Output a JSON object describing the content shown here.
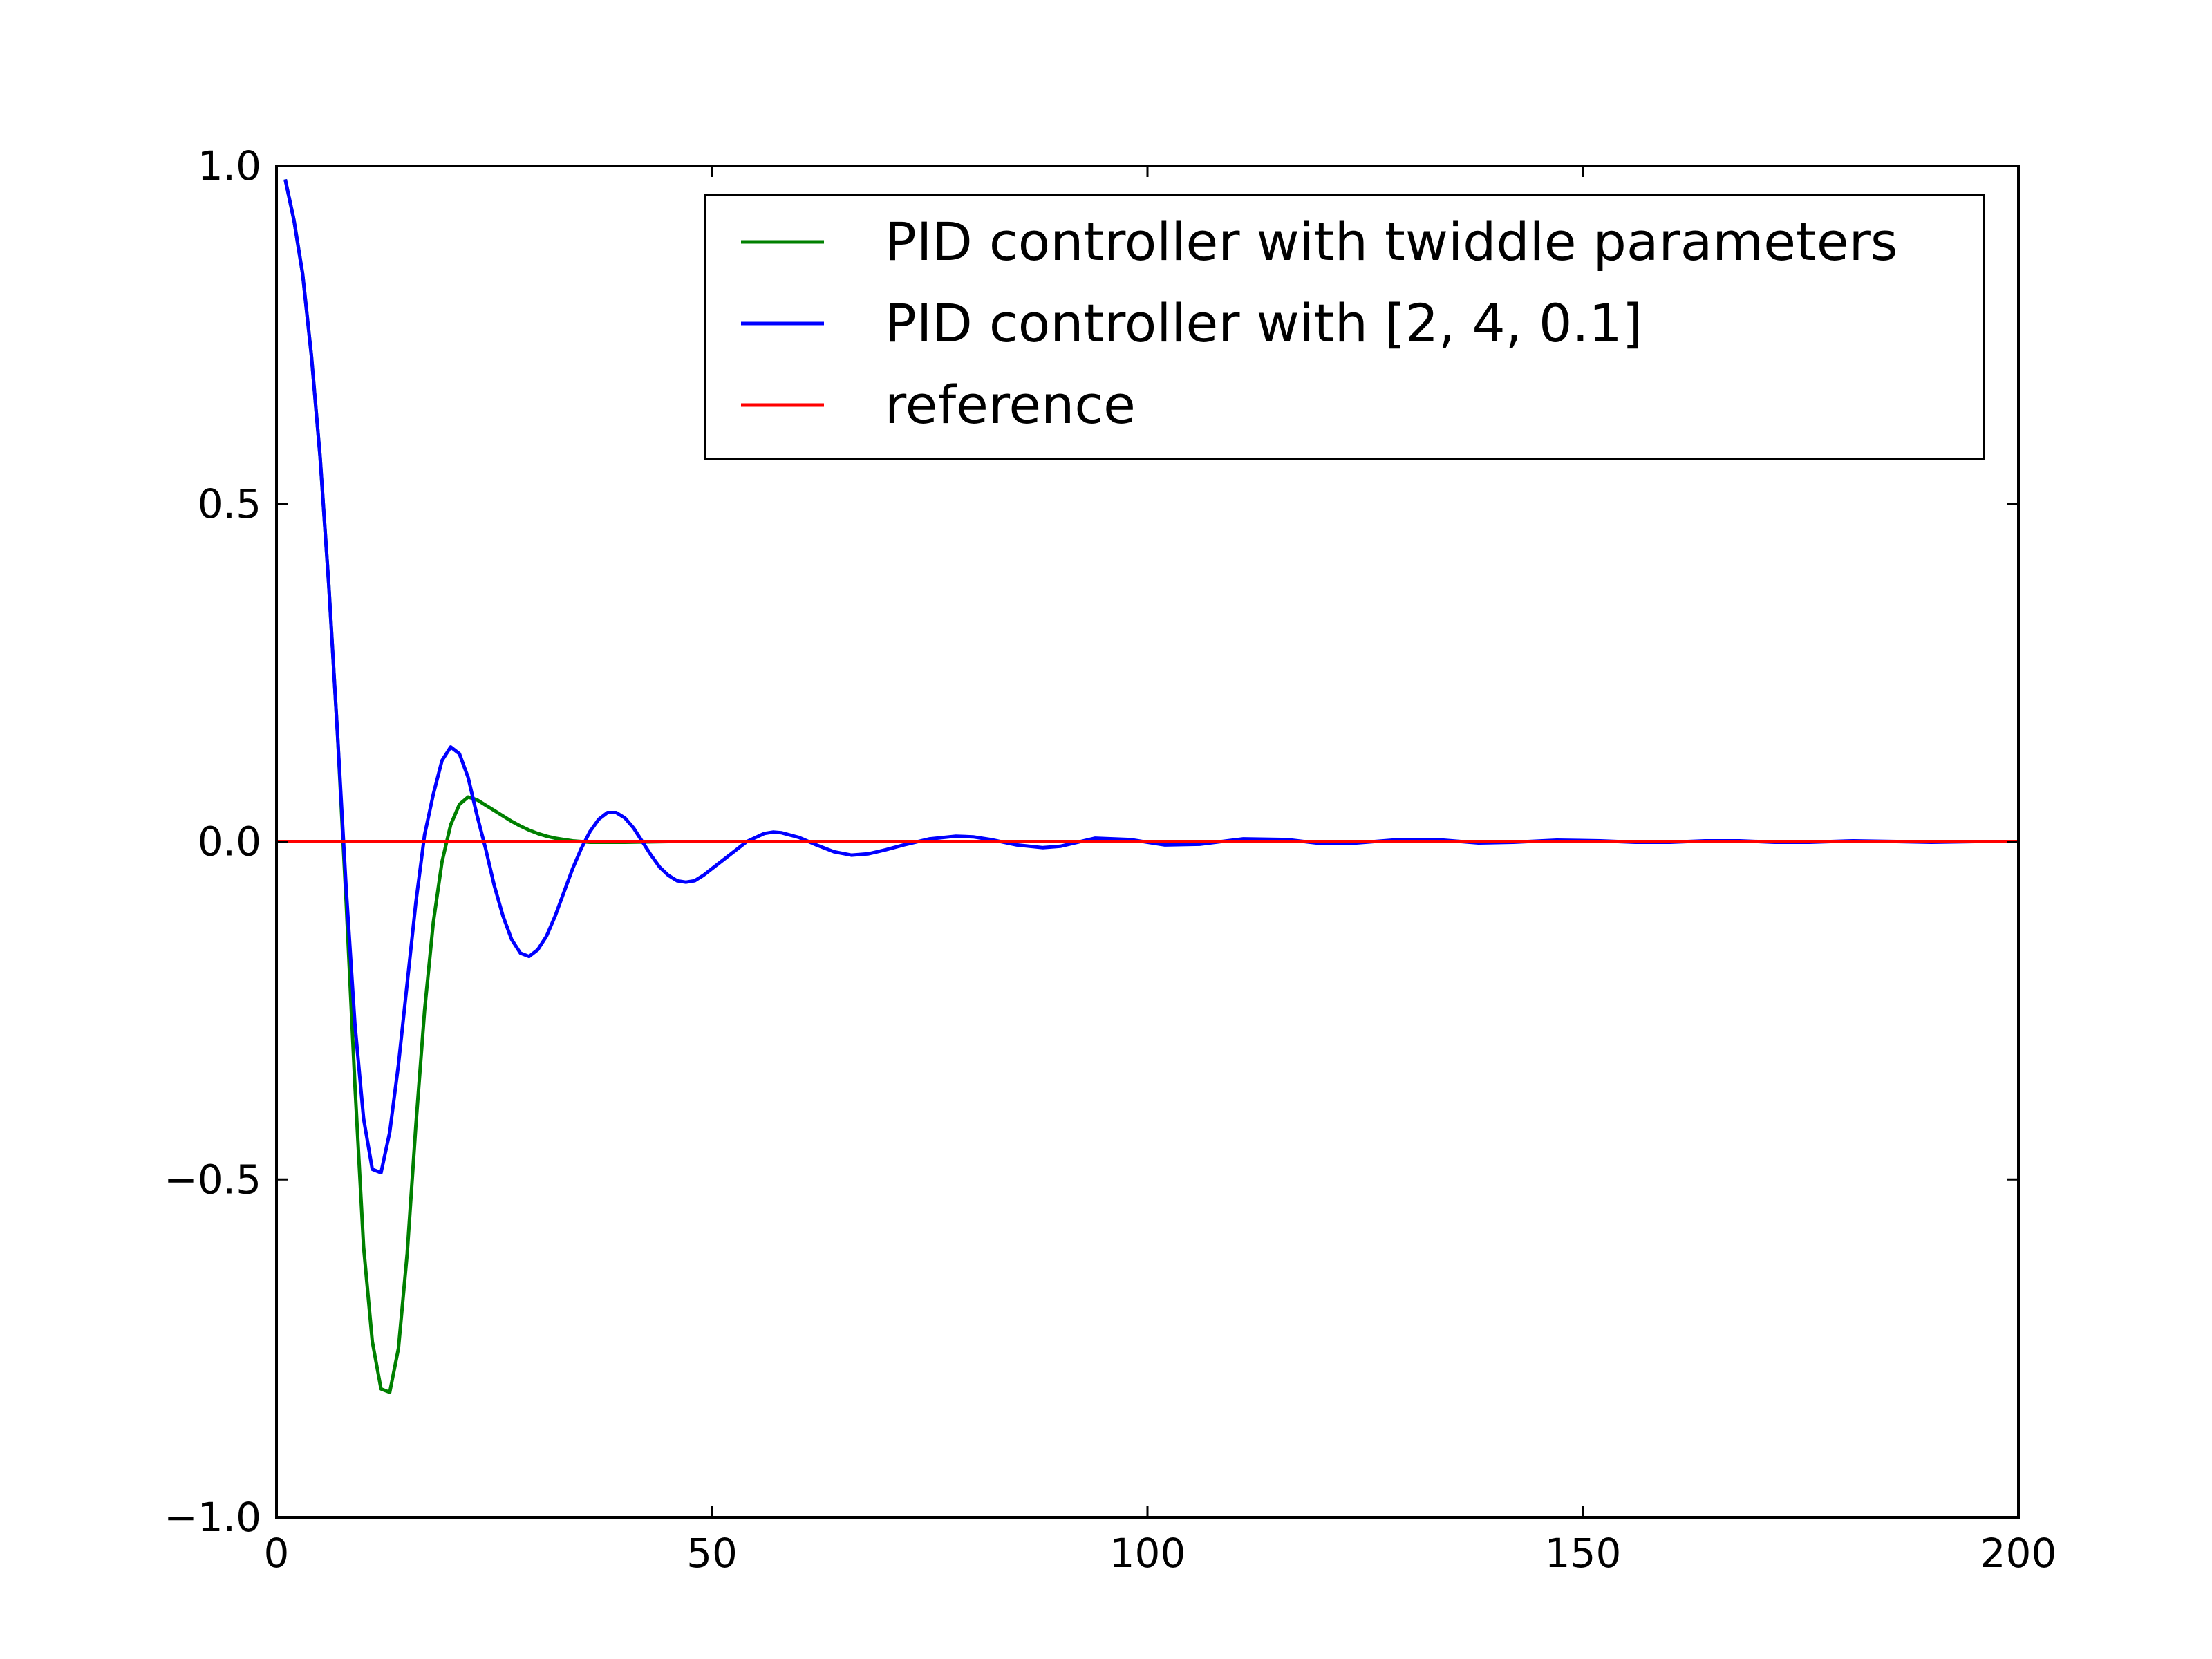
{
  "chart_data": {
    "type": "line",
    "title": "",
    "xlabel": "",
    "ylabel": "",
    "xlim": [
      0,
      200
    ],
    "ylim": [
      -1.0,
      1.0
    ],
    "grid": false,
    "legend_position": "top-right",
    "x_ticks": [
      {
        "value": 0,
        "label": "0"
      },
      {
        "value": 50,
        "label": "50"
      },
      {
        "value": 100,
        "label": "100"
      },
      {
        "value": 150,
        "label": "150"
      },
      {
        "value": 200,
        "label": "200"
      }
    ],
    "y_ticks": [
      {
        "value": -1.0,
        "label": "−1.0"
      },
      {
        "value": -0.5,
        "label": "−0.5"
      },
      {
        "value": 0.0,
        "label": "0.0"
      },
      {
        "value": 0.5,
        "label": "0.5"
      },
      {
        "value": 1.0,
        "label": "1.0"
      }
    ],
    "series": [
      {
        "name": "PID controller with twiddle parameters",
        "color": "#008000",
        "x": [
          1,
          2,
          3,
          4,
          5,
          6,
          7,
          8,
          9,
          10,
          11,
          12,
          13,
          14,
          15,
          16,
          17,
          18,
          19,
          20,
          21,
          22,
          23,
          24,
          25,
          26,
          27,
          28,
          29,
          30,
          31,
          32,
          33,
          34,
          35,
          36,
          38,
          40,
          45,
          50,
          60,
          80,
          100,
          120,
          150,
          200
        ],
        "y": [
          0.98,
          0.92,
          0.84,
          0.72,
          0.57,
          0.38,
          0.16,
          -0.09,
          -0.36,
          -0.6,
          -0.74,
          -0.81,
          -0.815,
          -0.75,
          -0.61,
          -0.42,
          -0.25,
          -0.12,
          -0.03,
          0.025,
          0.055,
          0.066,
          0.062,
          0.054,
          0.046,
          0.038,
          0.03,
          0.023,
          0.017,
          0.012,
          0.008,
          0.005,
          0.003,
          0.001,
          0.0,
          -0.001,
          -0.001,
          -0.001,
          0.0,
          0.0,
          0.0,
          0.0,
          0.0,
          0.0,
          0.0,
          0.0
        ]
      },
      {
        "name": "PID controller with [2, 4, 0.1]",
        "color": "#0000ff",
        "x": [
          1,
          2,
          3,
          4,
          5,
          6,
          7,
          8,
          9,
          10,
          11,
          12,
          13,
          14,
          15,
          16,
          17,
          18,
          19,
          20,
          21,
          22,
          23,
          24,
          25,
          26,
          27,
          28,
          29,
          30,
          31,
          32,
          33,
          34,
          35,
          36,
          37,
          38,
          39,
          40,
          41,
          42,
          43,
          44,
          45,
          46,
          47,
          48,
          49,
          50,
          52,
          54,
          56,
          57,
          58,
          60,
          62,
          64,
          66,
          68,
          70,
          72,
          75,
          78,
          80,
          82,
          85,
          88,
          90,
          94,
          98,
          102,
          106,
          111,
          116,
          120,
          124,
          129,
          134,
          138,
          142,
          147,
          152,
          156,
          160,
          164,
          168,
          172,
          176,
          181,
          186,
          190,
          195,
          200
        ],
        "y": [
          0.98,
          0.92,
          0.84,
          0.72,
          0.57,
          0.38,
          0.16,
          -0.07,
          -0.27,
          -0.41,
          -0.485,
          -0.49,
          -0.43,
          -0.33,
          -0.21,
          -0.09,
          0.01,
          0.07,
          0.12,
          0.14,
          0.13,
          0.095,
          0.04,
          -0.01,
          -0.065,
          -0.11,
          -0.145,
          -0.165,
          -0.17,
          -0.16,
          -0.14,
          -0.11,
          -0.075,
          -0.04,
          -0.01,
          0.015,
          0.033,
          0.043,
          0.043,
          0.035,
          0.02,
          0.0,
          -0.02,
          -0.038,
          -0.05,
          -0.058,
          -0.06,
          -0.058,
          -0.05,
          -0.04,
          -0.02,
          0.0,
          0.012,
          0.014,
          0.013,
          0.006,
          -0.005,
          -0.015,
          -0.02,
          -0.018,
          -0.012,
          -0.005,
          0.004,
          0.008,
          0.007,
          0.003,
          -0.005,
          -0.009,
          -0.007,
          0.005,
          0.003,
          -0.005,
          -0.004,
          0.004,
          0.003,
          -0.003,
          -0.002,
          0.003,
          0.002,
          -0.002,
          -0.001,
          0.002,
          0.001,
          -0.001,
          -0.001,
          0.001,
          0.001,
          -0.001,
          -0.001,
          0.001,
          0.0,
          -0.001,
          0.0,
          0.0
        ]
      },
      {
        "name": "reference",
        "color": "#ff0000",
        "x": [
          0,
          200
        ],
        "y": [
          0.0,
          0.0
        ]
      }
    ]
  }
}
